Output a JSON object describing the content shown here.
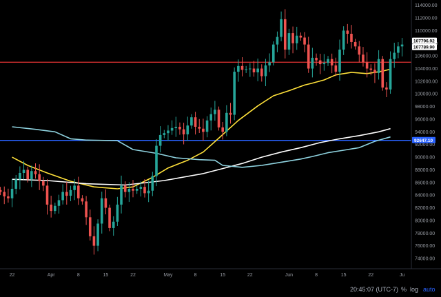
{
  "chart_data": {
    "type": "candlestick",
    "title": "",
    "xlabel": "",
    "ylabel": "",
    "ylim": [
      72800,
      114400
    ],
    "y_ticks": [
      74000,
      76000,
      78000,
      80000,
      82000,
      84000,
      86000,
      88000,
      90000,
      92000,
      94000,
      96000,
      98000,
      100000,
      102000,
      104000,
      106000,
      108000,
      110000,
      112000,
      114000
    ],
    "x_ticks": [
      {
        "label": "22",
        "day": -9
      },
      {
        "label": "Apr",
        "day": 1
      },
      {
        "label": "8",
        "day": 8
      },
      {
        "label": "15",
        "day": 15
      },
      {
        "label": "22",
        "day": 22
      },
      {
        "label": "May",
        "day": 31
      },
      {
        "label": "8",
        "day": 38
      },
      {
        "label": "15",
        "day": 45
      },
      {
        "label": "22",
        "day": 52
      },
      {
        "label": "Jun",
        "day": 62
      },
      {
        "label": "8",
        "day": 69
      },
      {
        "label": "15",
        "day": 76
      },
      {
        "label": "22",
        "day": 83
      },
      {
        "label": "Ju",
        "day": 91
      }
    ],
    "close": [
      84500,
      83800,
      83500,
      85000,
      86500,
      87500,
      88000,
      86500,
      87800,
      87300,
      86200,
      85500,
      82500,
      81500,
      82300,
      83200,
      84500,
      83900,
      84800,
      85500,
      83500,
      83000,
      80500,
      77500,
      76000,
      79500,
      83500,
      82000,
      78800,
      79800,
      82500,
      85500,
      84500,
      85000,
      84700,
      85000,
      85300,
      84300,
      84700,
      87000,
      91800,
      93500,
      93800,
      94200,
      94600,
      94800,
      94400,
      93600,
      95000,
      96300,
      94800,
      94500,
      94000,
      95800,
      96800,
      97500,
      94700,
      94000,
      97000,
      96700,
      103500,
      104400,
      103800,
      103900,
      104000,
      103400,
      104000,
      102800,
      104500,
      105000,
      107800,
      109000,
      111800,
      107000,
      109600,
      108000,
      109200,
      108900,
      107800,
      104000,
      105700,
      105300,
      104700,
      104900,
      105500,
      104500,
      103500,
      107000,
      110000,
      109500,
      108200,
      107500,
      106200,
      105000,
      104000,
      103800,
      103300,
      105500,
      101000,
      100700,
      105500,
      106500,
      107500,
      107800
    ],
    "open": [
      84800,
      84500,
      83800,
      83500,
      85000,
      86500,
      87500,
      88000,
      86500,
      87800,
      87300,
      86200,
      85500,
      82500,
      81500,
      82300,
      83200,
      84500,
      83900,
      84800,
      85500,
      83500,
      83000,
      80500,
      77500,
      76000,
      79500,
      83500,
      82000,
      78800,
      79800,
      82500,
      85500,
      84500,
      85000,
      84700,
      85000,
      85300,
      84300,
      84700,
      87000,
      91800,
      93500,
      93800,
      94200,
      94600,
      94800,
      94400,
      93600,
      95000,
      96300,
      94800,
      94500,
      94000,
      95800,
      96800,
      97500,
      94700,
      94000,
      97000,
      96700,
      103500,
      104400,
      103800,
      103900,
      104000,
      103400,
      104000,
      102800,
      104500,
      105000,
      107800,
      109000,
      111800,
      107000,
      109600,
      108000,
      109200,
      108900,
      107800,
      104000,
      105700,
      105300,
      104700,
      104900,
      105500,
      104500,
      103500,
      107000,
      110000,
      109500,
      108200,
      107500,
      106200,
      105000,
      104000,
      103800,
      103300,
      105500,
      101000,
      100700,
      105500,
      106500,
      107500
    ],
    "series": [
      {
        "name": "",
        "color": "#ffe13a",
        "points": [
          [
            -9,
            90000
          ],
          [
            -5,
            88700
          ],
          [
            0,
            87500
          ],
          [
            6,
            86200
          ],
          [
            12,
            85300
          ],
          [
            18,
            85000
          ],
          [
            22,
            85300
          ],
          [
            27,
            86800
          ],
          [
            31,
            88300
          ],
          [
            36,
            89500
          ],
          [
            40,
            90800
          ],
          [
            44,
            93000
          ],
          [
            49,
            95800
          ],
          [
            54,
            98100
          ],
          [
            58,
            99700
          ],
          [
            62,
            100500
          ],
          [
            66,
            101400
          ],
          [
            68,
            101700
          ],
          [
            71,
            102200
          ],
          [
            74,
            103000
          ],
          [
            78,
            103400
          ],
          [
            82,
            103200
          ],
          [
            86,
            103600
          ],
          [
            88,
            103900
          ]
        ]
      },
      {
        "name": "",
        "color": "#ffffff",
        "points": [
          [
            -9,
            86500
          ],
          [
            0,
            86300
          ],
          [
            10,
            85800
          ],
          [
            20,
            85600
          ],
          [
            30,
            86300
          ],
          [
            40,
            87400
          ],
          [
            45,
            88200
          ],
          [
            50,
            89000
          ],
          [
            55,
            90000
          ],
          [
            60,
            90800
          ],
          [
            65,
            91500
          ],
          [
            70,
            92300
          ],
          [
            75,
            92900
          ],
          [
            80,
            93400
          ],
          [
            85,
            94000
          ],
          [
            88,
            94500
          ]
        ]
      },
      {
        "name": "",
        "color": "#8fd3e0",
        "points": [
          [
            -9,
            94800
          ],
          [
            -3,
            94400
          ],
          [
            2,
            94000
          ],
          [
            6,
            92900
          ],
          [
            10,
            92700
          ],
          [
            18,
            92600
          ],
          [
            22,
            91200
          ],
          [
            28,
            90600
          ],
          [
            33,
            89900
          ],
          [
            39,
            89600
          ],
          [
            43,
            89500
          ],
          [
            45,
            88700
          ],
          [
            50,
            88400
          ],
          [
            55,
            88700
          ],
          [
            60,
            89200
          ],
          [
            65,
            89700
          ],
          [
            68,
            90100
          ],
          [
            72,
            90700
          ],
          [
            76,
            91100
          ],
          [
            80,
            91500
          ],
          [
            84,
            92500
          ],
          [
            88,
            93200
          ]
        ]
      }
    ],
    "horizontal_lines": [
      {
        "value": 105000,
        "color": "#d32f2f"
      },
      {
        "value": 92647.1,
        "color": "#2962ff",
        "label": "92647.10"
      }
    ],
    "price_badges": [
      {
        "label": "107796.92",
        "value": 107796.92,
        "bg": "#ffffff",
        "fg": "#000000"
      },
      {
        "label": "107789.90",
        "value": 107789.9,
        "bg": "#ffffff",
        "fg": "#000000"
      }
    ],
    "grid": false
  },
  "footer": {
    "clock": "20:45:07 (UTC-7)",
    "percent_label": "%",
    "log_label": "log",
    "auto_label": "auto"
  },
  "colors": {
    "up": "#26a69a",
    "down": "#ef5350",
    "background": "#000000"
  }
}
